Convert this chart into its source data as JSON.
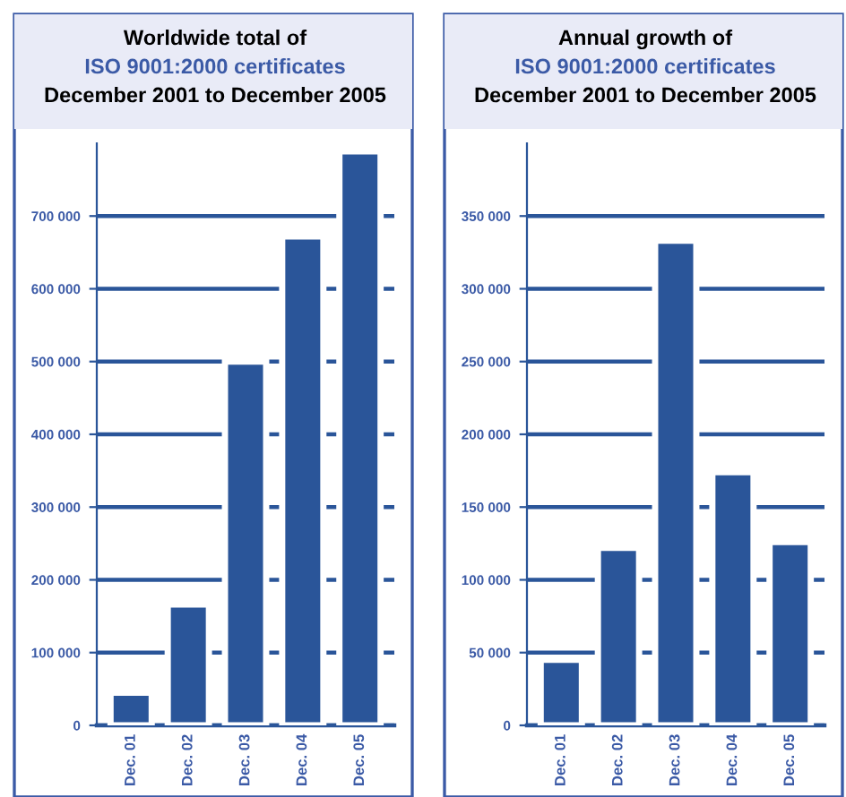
{
  "chart_data": [
    {
      "type": "bar",
      "title": "Worldwide total of\nISO 9001:2000 certificates\nDecember 2001 to December 2005",
      "categories": [
        "Dec. 01",
        "Dec. 02",
        "Dec. 03",
        "Dec. 04",
        "Dec. 05"
      ],
      "series": [
        {
          "color": "#2a5599",
          "values": [
            45000,
            166000,
            500000,
            672000,
            789000
          ]
        }
      ],
      "ylim": [
        0,
        800000
      ],
      "yticks": [
        0,
        {
          "value": 100000,
          "label": "100 000"
        },
        {
          "value": 200000,
          "label": "200 000"
        },
        {
          "value": 300000,
          "label": "300 000"
        },
        {
          "value": 400000,
          "label": "400 000"
        },
        {
          "value": 500000,
          "label": "500 000"
        },
        {
          "value": 600000,
          "label": "600 000"
        },
        {
          "value": 700000,
          "label": "700 000"
        }
      ],
      "grid": "y"
    },
    {
      "type": "bar",
      "title": "Annual growth of\nISO 9001:2000 certificates\nDecember 2001 to December 2005",
      "categories": [
        "Dec. 01",
        "Dec. 02",
        "Dec. 03",
        "Dec. 04",
        "Dec. 05"
      ],
      "series": [
        {
          "color": "#2a5599",
          "values": [
            45000,
            122000,
            333000,
            174000,
            126000
          ]
        }
      ],
      "ylim": [
        0,
        400000
      ],
      "yticks": [
        0,
        {
          "value": 50000,
          "label": "50 000"
        },
        {
          "value": 100000,
          "label": "100 000"
        },
        {
          "value": 150000,
          "label": "150 000"
        },
        {
          "value": 200000,
          "label": "200 000"
        },
        {
          "value": 250000,
          "label": "250 000"
        },
        {
          "value": 300000,
          "label": "300 000"
        },
        {
          "value": 350000,
          "label": "350 000"
        }
      ],
      "grid": "y"
    }
  ]
}
